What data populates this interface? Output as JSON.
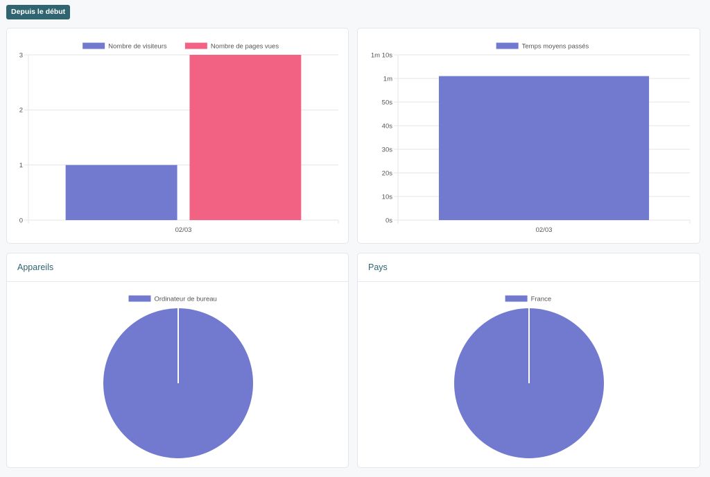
{
  "toolbar": {
    "period_label": "Depuis le début"
  },
  "colors": {
    "accent": "#2f6470",
    "series_blue": "#717ace",
    "series_pink": "#f26383",
    "grid": "#e5e5e5",
    "text": "#555555"
  },
  "chart_data": [
    {
      "id": "visits",
      "type": "bar",
      "categories": [
        "02/03"
      ],
      "series": [
        {
          "name": "Nombre de visiteurs",
          "values": [
            1
          ],
          "color": "#717ace"
        },
        {
          "name": "Nombre de pages vues",
          "values": [
            3
          ],
          "color": "#f26383"
        }
      ],
      "ylim": [
        0,
        3
      ],
      "yticks": [
        0,
        1,
        2,
        3
      ],
      "ytick_labels": [
        "0",
        "1",
        "2",
        "3"
      ],
      "legend": "top",
      "grid": true
    },
    {
      "id": "time",
      "type": "bar",
      "categories": [
        "02/03"
      ],
      "series": [
        {
          "name": "Temps moyens passés",
          "values": [
            61
          ],
          "color": "#717ace"
        }
      ],
      "ylim": [
        0,
        70
      ],
      "yticks": [
        0,
        10,
        20,
        30,
        40,
        50,
        60,
        70
      ],
      "ytick_labels": [
        "0s",
        "10s",
        "20s",
        "30s",
        "40s",
        "50s",
        "1m",
        "1m 10s"
      ],
      "legend": "top",
      "grid": true
    },
    {
      "id": "devices",
      "type": "pie",
      "title": "Appareils",
      "labels": [
        "Ordinateur de bureau"
      ],
      "values": [
        1
      ],
      "colors": [
        "#717ace"
      ],
      "legend": "top"
    },
    {
      "id": "countries",
      "type": "pie",
      "title": "Pays",
      "labels": [
        "France"
      ],
      "values": [
        1
      ],
      "colors": [
        "#717ace"
      ],
      "legend": "top"
    }
  ]
}
